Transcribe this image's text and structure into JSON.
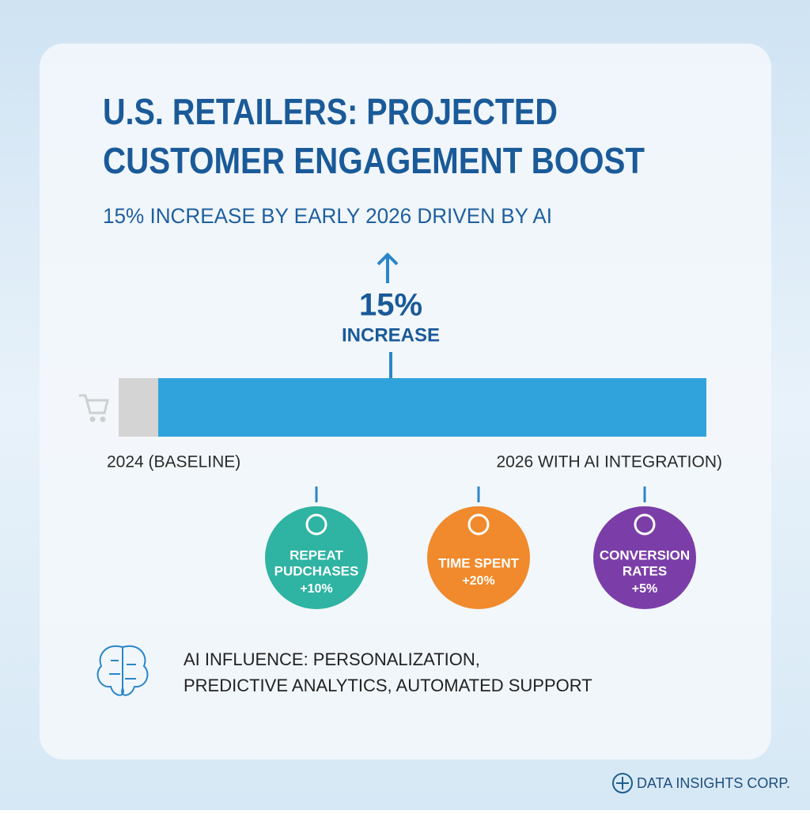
{
  "header": {
    "title_lines": [
      "U.S. RETAILERS: PROJECTED",
      "CUSTOMER ENGAGEMENT BOOST"
    ],
    "subtitle": "15% INCREASE BY EARLY 2026 DRIVEN BY AI"
  },
  "callout": {
    "value": "15%",
    "label": "INCREASE"
  },
  "bar": {
    "start_label": "2024 (BASELINE)",
    "end_label": "2026 WITH AI INTEGRATION)"
  },
  "metrics": [
    {
      "label_lines": [
        "REPEAT",
        "PUDCHASES"
      ],
      "value": "+10%",
      "color": "#2fb3a3"
    },
    {
      "label_lines": [
        "TIME SPENT"
      ],
      "value": "+20%",
      "color": "#f08a2c"
    },
    {
      "label_lines": [
        "CONVERSION",
        "RATES"
      ],
      "value": "+5%",
      "color": "#7b3ea8"
    }
  ],
  "footer": {
    "influence_lines": [
      "AI INFLUENCE: PERSONALIZATION,",
      "PREDICTIVE ANALYTICS, AUTOMATED SUPPORT"
    ],
    "brand": "DATA INSIGHTS CORP."
  }
}
